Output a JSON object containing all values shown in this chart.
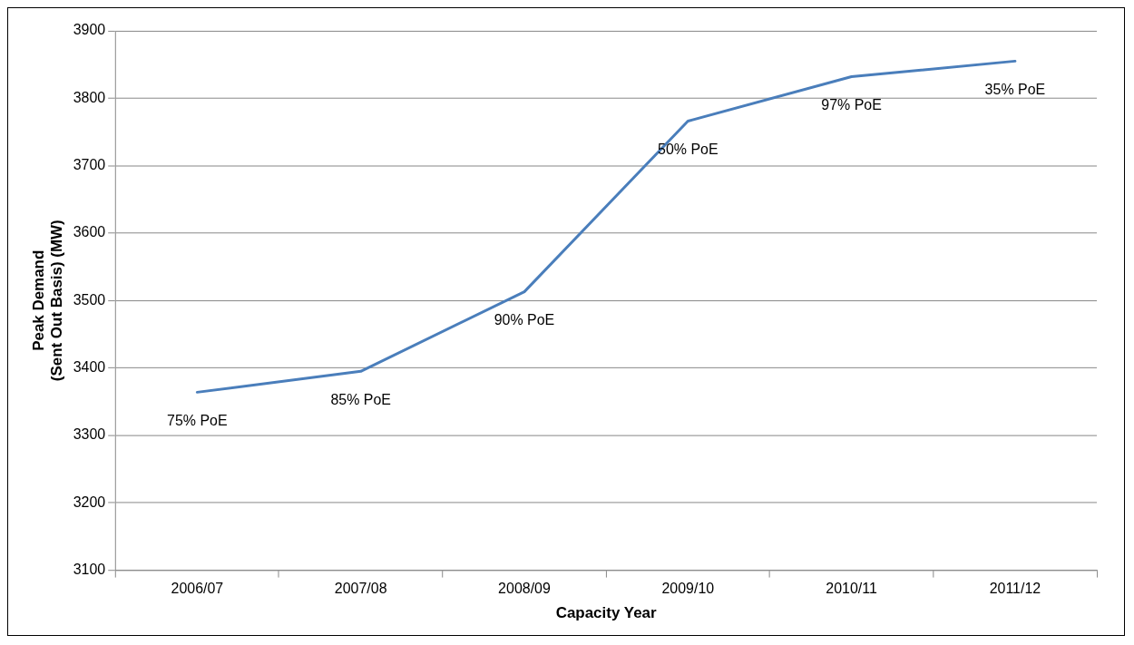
{
  "chart_data": {
    "type": "line",
    "xlabel": "Capacity Year",
    "ylabel": "Peak Demand\n(Sent Out Basis) (MW)",
    "categories": [
      "2006/07",
      "2007/08",
      "2008/09",
      "2009/10",
      "2010/11",
      "2011/12"
    ],
    "series": [
      {
        "color": "#4a7ebb",
        "values": [
          3364,
          3395,
          3513,
          3766,
          3832,
          3855
        ]
      }
    ],
    "ylim": [
      3100,
      3900
    ],
    "yticks": [
      3100,
      3200,
      3300,
      3400,
      3500,
      3600,
      3700,
      3800,
      3900
    ],
    "grid": "y",
    "legend": false,
    "marker": "none",
    "line_style": "solid",
    "annotations": [
      {
        "text": "75% PoE",
        "x": "2006/07",
        "y": 3364
      },
      {
        "text": "85% PoE",
        "x": "2007/08",
        "y": 3395
      },
      {
        "text": "90% PoE",
        "x": "2008/09",
        "y": 3513
      },
      {
        "text": "50% PoE",
        "x": "2009/10",
        "y": 3766
      },
      {
        "text": "97% PoE",
        "x": "2010/11",
        "y": 3832
      },
      {
        "text": "35% PoE",
        "x": "2011/12",
        "y": 3855
      }
    ]
  }
}
